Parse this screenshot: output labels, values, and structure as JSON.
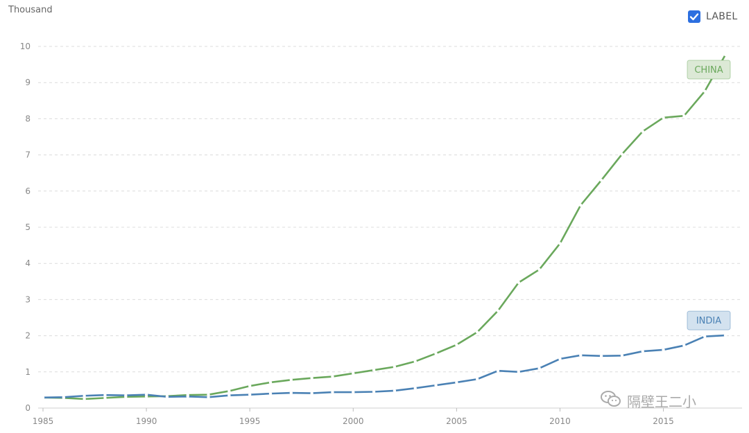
{
  "unit_label": "Thousand",
  "legend": {
    "label": "LABEL",
    "checked": true,
    "checkbox_color": "#2c6fe0"
  },
  "watermark": {
    "text": "隔壁王二小"
  },
  "chart_data": {
    "type": "line",
    "title": "",
    "xlabel": "",
    "ylabel": "Thousand",
    "xlim": [
      1985,
      2018
    ],
    "ylim": [
      0,
      10
    ],
    "x_ticks": [
      1985,
      1990,
      1995,
      2000,
      2005,
      2010,
      2015
    ],
    "y_ticks": [
      0,
      1,
      2,
      3,
      4,
      5,
      6,
      7,
      8,
      9,
      10
    ],
    "grid": true,
    "x": [
      1985,
      1986,
      1987,
      1988,
      1989,
      1990,
      1991,
      1992,
      1993,
      1994,
      1995,
      1996,
      1997,
      1998,
      1999,
      2000,
      2001,
      2002,
      2003,
      2004,
      2005,
      2006,
      2007,
      2008,
      2009,
      2010,
      2011,
      2012,
      2013,
      2014,
      2015,
      2016,
      2017,
      2018
    ],
    "series": [
      {
        "name": "CHINA",
        "color": "#6aa85c",
        "label_bg": "#dce9d6",
        "values": [
          0.29,
          0.28,
          0.25,
          0.28,
          0.31,
          0.32,
          0.33,
          0.36,
          0.37,
          0.47,
          0.61,
          0.71,
          0.78,
          0.83,
          0.87,
          0.96,
          1.05,
          1.14,
          1.29,
          1.51,
          1.75,
          2.1,
          2.69,
          3.47,
          3.83,
          4.55,
          5.61,
          6.3,
          7.02,
          7.65,
          8.03,
          8.08,
          8.76,
          9.77
        ]
      },
      {
        "name": "INDIA",
        "color": "#4a81b4",
        "label_bg": "#d3e2ef",
        "values": [
          0.29,
          0.3,
          0.34,
          0.36,
          0.35,
          0.37,
          0.31,
          0.32,
          0.3,
          0.35,
          0.37,
          0.4,
          0.42,
          0.41,
          0.44,
          0.44,
          0.45,
          0.48,
          0.55,
          0.63,
          0.71,
          0.8,
          1.03,
          1.0,
          1.1,
          1.36,
          1.46,
          1.44,
          1.45,
          1.57,
          1.61,
          1.73,
          1.98,
          2.01
        ]
      }
    ]
  }
}
